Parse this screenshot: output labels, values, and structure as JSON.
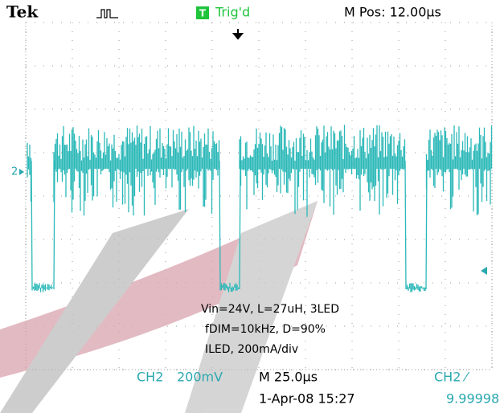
{
  "header": {
    "brand": "Tek",
    "trigger_icon": "T",
    "trigger_status": "Trig'd",
    "position": "M Pos: 12.00µs"
  },
  "screen": {
    "channel_marker": "2",
    "notes": [
      "Vin=24V, L=27uH, 3LED",
      "fDIM=10kHz, D=90%",
      "ILED, 200mA/div"
    ]
  },
  "footer": {
    "channel": "CH2",
    "scale": "200mV",
    "timebase": "M 25.0µs",
    "trigger_source": "CH2 ⁄",
    "date": "1-Apr-08 15:27",
    "frequency": "9.99998"
  }
}
